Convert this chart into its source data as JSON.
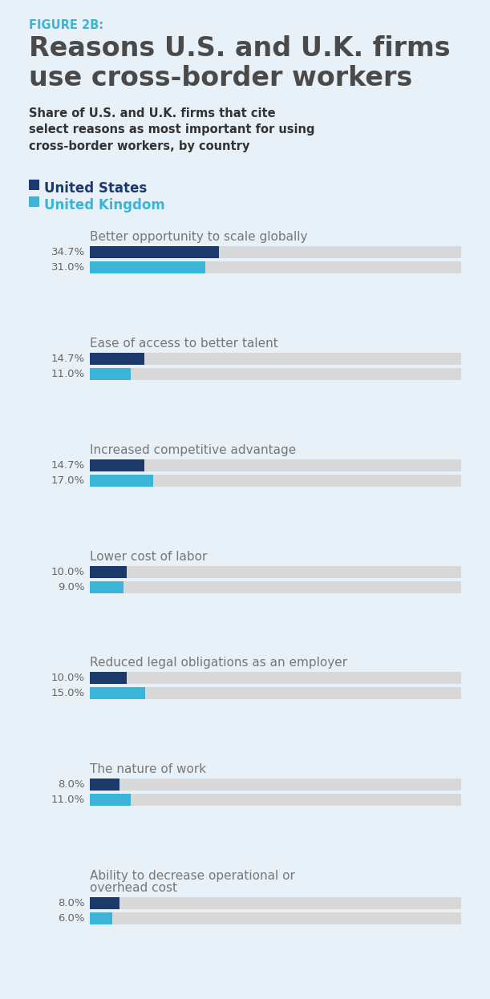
{
  "figure_label": "FIGURE 2B:",
  "title": "Reasons U.S. and U.K. firms\nuse cross-border workers",
  "subtitle": "Share of U.S. and U.K. firms that cite\nselect reasons as most important for using\ncross-border workers, by country",
  "legend": [
    {
      "label": "United States",
      "color": "#1b3a6b"
    },
    {
      "label": "United Kingdom",
      "color": "#3ab5d8"
    }
  ],
  "categories": [
    {
      "title_lines": [
        "Better opportunity to scale globally"
      ],
      "us_value": 34.7,
      "uk_value": 31.0,
      "us_label": "34.7%",
      "uk_label": "31.0%"
    },
    {
      "title_lines": [
        "Ease of access to better talent"
      ],
      "us_value": 14.7,
      "uk_value": 11.0,
      "us_label": "14.7%",
      "uk_label": "11.0%"
    },
    {
      "title_lines": [
        "Increased competitive advantage"
      ],
      "us_value": 14.7,
      "uk_value": 17.0,
      "us_label": "14.7%",
      "uk_label": "17.0%"
    },
    {
      "title_lines": [
        "Lower cost of labor"
      ],
      "us_value": 10.0,
      "uk_value": 9.0,
      "us_label": "10.0%",
      "uk_label": "9.0%"
    },
    {
      "title_lines": [
        "Reduced legal obligations as an employer"
      ],
      "us_value": 10.0,
      "uk_value": 15.0,
      "us_label": "10.0%",
      "uk_label": "15.0%"
    },
    {
      "title_lines": [
        "The nature of work"
      ],
      "us_value": 8.0,
      "uk_value": 11.0,
      "us_label": "8.0%",
      "uk_label": "11.0%"
    },
    {
      "title_lines": [
        "Ability to decrease operational or",
        "overhead cost"
      ],
      "us_value": 8.0,
      "uk_value": 6.0,
      "us_label": "8.0%",
      "uk_label": "6.0%"
    }
  ],
  "max_value": 100,
  "us_color": "#1b3a6b",
  "uk_color": "#3ab5d8",
  "bg_color": "#e8f1f7",
  "bar_bg_color": "#d8d8d8",
  "figure_label_color": "#3ab5d8",
  "title_color": "#4a4a4a",
  "subtitle_color": "#333333",
  "category_title_color": "#777777",
  "value_label_color": "#666666"
}
